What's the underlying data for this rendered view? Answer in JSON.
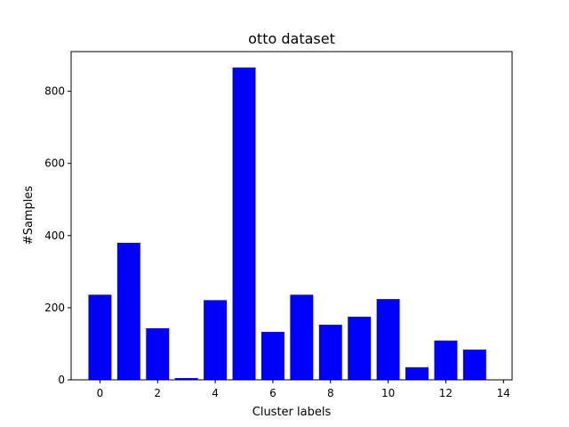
{
  "chart_data": {
    "type": "bar",
    "title": "otto dataset",
    "xlabel": "Cluster labels",
    "ylabel": "#Samples",
    "categories": [
      0,
      1,
      2,
      3,
      4,
      5,
      6,
      7,
      8,
      9,
      10,
      11,
      12,
      13
    ],
    "values": [
      236,
      380,
      143,
      5,
      221,
      866,
      133,
      236,
      153,
      175,
      224,
      35,
      109,
      84
    ],
    "xlim": [
      -1,
      14.3
    ],
    "ylim": [
      0,
      910
    ],
    "xticks": [
      0,
      2,
      4,
      6,
      8,
      10,
      12,
      14
    ],
    "yticks": [
      0,
      200,
      400,
      600,
      800
    ],
    "bar_width": 0.8,
    "bar_color": "#0000ff",
    "grid": false
  }
}
